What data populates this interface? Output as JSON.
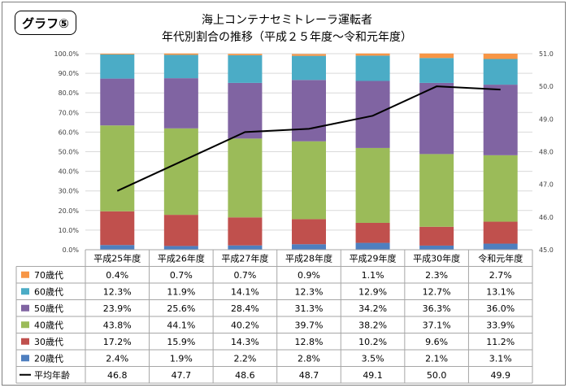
{
  "graph_label": "グラフ⑤",
  "title_line1": "海上コンテナセミトレーラ運転者",
  "title_line2": "年代別割合の推移（平成２５年度～令和元年度）",
  "colors": {
    "20s": "#4e7fbf",
    "30s": "#c0504d",
    "40s": "#9bbb59",
    "50s": "#8064a2",
    "60s": "#4bacc6",
    "70s": "#f79646",
    "line": "#000000",
    "grid": "#d9d9d9"
  },
  "chart_data": {
    "type": "bar",
    "stacked": true,
    "categories": [
      "平成25年度",
      "平成26年度",
      "平成27年度",
      "平成28年度",
      "平成29年度",
      "平成30年度",
      "令和元年度"
    ],
    "series": [
      {
        "name": "20歳代",
        "key": "20s",
        "values": [
          2.4,
          1.9,
          2.2,
          2.8,
          3.5,
          2.1,
          3.1
        ],
        "labels": [
          "2.4%",
          "1.9%",
          "2.2%",
          "2.8%",
          "3.5%",
          "2.1%",
          "3.1%"
        ]
      },
      {
        "name": "30歳代",
        "key": "30s",
        "values": [
          17.2,
          15.9,
          14.3,
          12.8,
          10.2,
          9.6,
          11.2
        ],
        "labels": [
          "17.2%",
          "15.9%",
          "14.3%",
          "12.8%",
          "10.2%",
          "9.6%",
          "11.2%"
        ]
      },
      {
        "name": "40歳代",
        "key": "40s",
        "values": [
          43.8,
          44.1,
          40.2,
          39.7,
          38.2,
          37.1,
          33.9
        ],
        "labels": [
          "43.8%",
          "44.1%",
          "40.2%",
          "39.7%",
          "38.2%",
          "37.1%",
          "33.9%"
        ]
      },
      {
        "name": "50歳代",
        "key": "50s",
        "values": [
          23.9,
          25.6,
          28.4,
          31.3,
          34.2,
          36.3,
          36.0
        ],
        "labels": [
          "23.9%",
          "25.6%",
          "28.4%",
          "31.3%",
          "34.2%",
          "36.3%",
          "36.0%"
        ]
      },
      {
        "name": "60歳代",
        "key": "60s",
        "values": [
          12.3,
          11.9,
          14.1,
          12.3,
          12.9,
          12.7,
          13.1
        ],
        "labels": [
          "12.3%",
          "11.9%",
          "14.1%",
          "12.3%",
          "12.9%",
          "12.7%",
          "13.1%"
        ]
      },
      {
        "name": "70歳代",
        "key": "70s",
        "values": [
          0.4,
          0.7,
          0.7,
          0.9,
          1.1,
          2.3,
          2.7
        ],
        "labels": [
          "0.4%",
          "0.7%",
          "0.7%",
          "0.9%",
          "1.1%",
          "2.3%",
          "2.7%"
        ]
      }
    ],
    "line_series": {
      "name": "平均年齢",
      "values": [
        46.8,
        47.7,
        48.6,
        48.7,
        49.1,
        50.0,
        49.9
      ],
      "labels": [
        "46.8",
        "47.7",
        "48.6",
        "48.7",
        "49.1",
        "50.0",
        "49.9"
      ]
    },
    "y_left": {
      "min": 0,
      "max": 100,
      "ticks": [
        "0.0%",
        "10.0%",
        "20.0%",
        "30.0%",
        "40.0%",
        "50.0%",
        "60.0%",
        "70.0%",
        "80.0%",
        "90.0%",
        "100.0%"
      ]
    },
    "y_right": {
      "min": 45.0,
      "max": 51.0,
      "ticks": [
        "45.0",
        "46.0",
        "47.0",
        "48.0",
        "49.0",
        "50.0",
        "51.0"
      ]
    },
    "table_row_order": [
      "70s",
      "60s",
      "50s",
      "40s",
      "30s",
      "20s"
    ],
    "grid": true,
    "legend": "data-table"
  }
}
